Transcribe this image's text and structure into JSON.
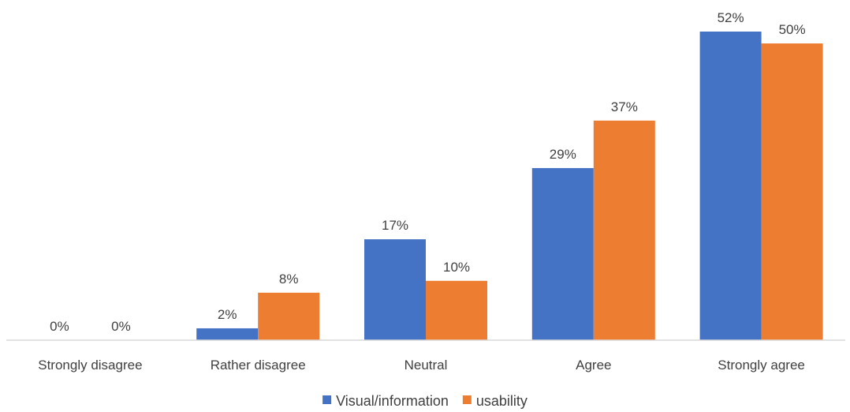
{
  "chart_data": {
    "type": "bar",
    "title": "",
    "xlabel": "",
    "ylabel": "",
    "categories": [
      "Strongly disagree",
      "Rather disagree",
      "Neutral",
      "Agree",
      "Strongly agree"
    ],
    "series": [
      {
        "name": "Visual/information",
        "color": "#4472C4",
        "values": [
          0,
          2,
          17,
          29,
          52
        ],
        "labels": [
          "0%",
          "2%",
          "17%",
          "29%",
          "52%"
        ]
      },
      {
        "name": "usability",
        "color": "#ED7D31",
        "values": [
          0,
          8,
          10,
          37,
          50
        ],
        "labels": [
          "0%",
          "8%",
          "10%",
          "37%",
          "50%"
        ]
      }
    ],
    "ylim": [
      0,
      52
    ],
    "grid": false,
    "legend": "bottom",
    "axis_color": "#D9D9D9"
  }
}
